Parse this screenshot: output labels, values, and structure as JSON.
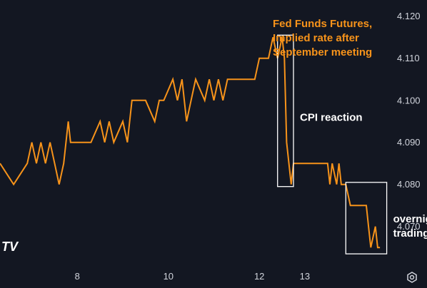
{
  "chart_data": {
    "type": "line",
    "title": "Fed Funds Futures, Implied rate after September meeting",
    "title_lines": [
      "Fed Funds Futures,",
      "Implied rate after",
      "September meeting"
    ],
    "ylim": [
      4.0625,
      4.1225
    ],
    "xlim": [
      6.3,
      14.9
    ],
    "y_ticks": [
      4.12,
      4.11,
      4.1,
      4.09,
      4.08,
      4.07
    ],
    "y_tick_labels": [
      "4.120",
      "4.110",
      "4.100",
      "4.090",
      "4.080",
      "4.070"
    ],
    "x_ticks": [
      8,
      10,
      12,
      13
    ],
    "x_tick_labels": [
      "8",
      "10",
      "12",
      "13"
    ],
    "grid": false,
    "series": [
      {
        "color": "#f7931a",
        "points": [
          [
            6.3,
            4.085
          ],
          [
            6.6,
            4.08
          ],
          [
            6.9,
            4.085
          ],
          [
            7.0,
            4.09
          ],
          [
            7.1,
            4.085
          ],
          [
            7.2,
            4.09
          ],
          [
            7.3,
            4.085
          ],
          [
            7.4,
            4.09
          ],
          [
            7.5,
            4.085
          ],
          [
            7.6,
            4.08
          ],
          [
            7.7,
            4.085
          ],
          [
            7.75,
            4.09
          ],
          [
            7.8,
            4.095
          ],
          [
            7.85,
            4.09
          ],
          [
            8.3,
            4.09
          ],
          [
            8.5,
            4.095
          ],
          [
            8.6,
            4.09
          ],
          [
            8.7,
            4.095
          ],
          [
            8.8,
            4.09
          ],
          [
            9.0,
            4.095
          ],
          [
            9.1,
            4.09
          ],
          [
            9.2,
            4.1
          ],
          [
            9.5,
            4.1
          ],
          [
            9.7,
            4.095
          ],
          [
            9.8,
            4.1
          ],
          [
            9.9,
            4.1
          ],
          [
            10.1,
            4.105
          ],
          [
            10.2,
            4.1
          ],
          [
            10.3,
            4.105
          ],
          [
            10.4,
            4.095
          ],
          [
            10.5,
            4.1
          ],
          [
            10.6,
            4.105
          ],
          [
            10.8,
            4.1
          ],
          [
            10.9,
            4.105
          ],
          [
            11.0,
            4.1
          ],
          [
            11.1,
            4.105
          ],
          [
            11.2,
            4.1
          ],
          [
            11.3,
            4.105
          ],
          [
            11.9,
            4.105
          ],
          [
            12.0,
            4.11
          ],
          [
            12.2,
            4.11
          ],
          [
            12.3,
            4.115
          ],
          [
            12.4,
            4.11
          ],
          [
            12.5,
            4.115
          ],
          [
            12.55,
            4.11
          ],
          [
            12.6,
            4.09
          ],
          [
            12.65,
            4.085
          ],
          [
            12.7,
            4.08
          ],
          [
            12.75,
            4.085
          ],
          [
            13.5,
            4.085
          ],
          [
            13.55,
            4.08
          ],
          [
            13.6,
            4.085
          ],
          [
            13.7,
            4.08
          ],
          [
            13.75,
            4.085
          ],
          [
            13.8,
            4.08
          ],
          [
            13.9,
            4.08
          ],
          [
            14.0,
            4.075
          ],
          [
            14.35,
            4.075
          ],
          [
            14.4,
            4.07
          ],
          [
            14.45,
            4.065
          ],
          [
            14.55,
            4.07
          ],
          [
            14.6,
            4.065
          ],
          [
            14.65,
            4.065
          ]
        ]
      }
    ],
    "annotations": [
      {
        "text": "CPI reaction",
        "box_x": [
          12.4,
          12.75
        ],
        "box_y": [
          4.0795,
          4.1155
        ]
      },
      {
        "text": "overnight trading",
        "text_lines": [
          "overnight",
          "trading"
        ],
        "box_x": [
          13.9,
          14.8
        ],
        "box_y": [
          4.0635,
          4.0805
        ]
      }
    ]
  },
  "ui": {
    "logo_text": "TV",
    "settings_icon": "settings-icon"
  }
}
